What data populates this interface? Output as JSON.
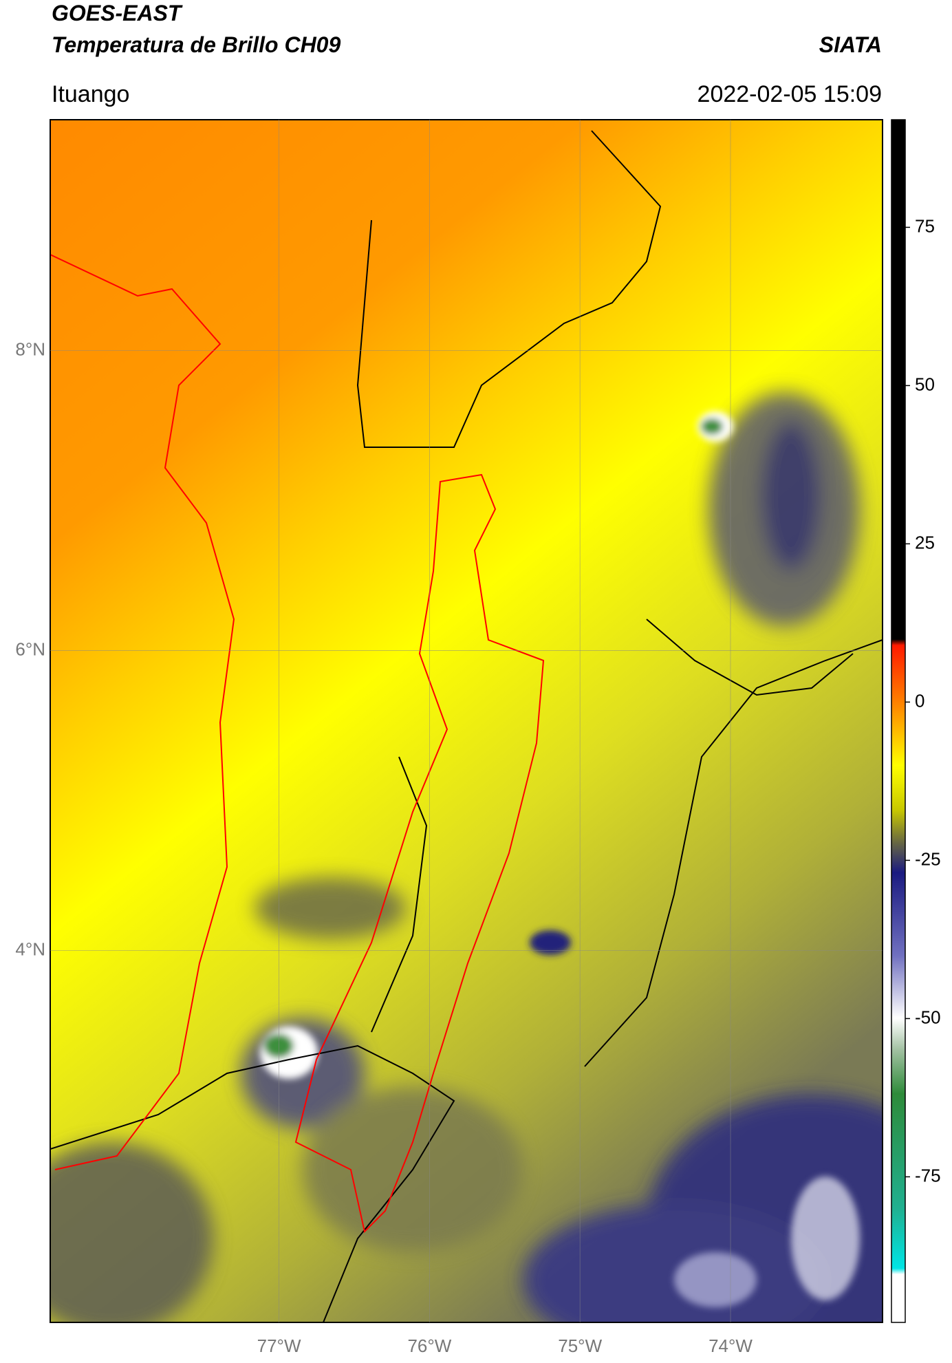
{
  "header": {
    "title": "GOES-EAST",
    "subtitle": "Temperatura de Brillo CH09",
    "source": "SIATA",
    "location": "Ituango",
    "datetime": "2022-02-05 15:09"
  },
  "map": {
    "xlim": [
      -78.52,
      -72.99
    ],
    "ylim": [
      1.52,
      9.54
    ],
    "xticks": [
      {
        "value": -77,
        "label": "77°W"
      },
      {
        "value": -76,
        "label": "76°W"
      },
      {
        "value": -75,
        "label": "75°W"
      },
      {
        "value": -74,
        "label": "74°W"
      }
    ],
    "yticks": [
      {
        "value": 8,
        "label": "8°N"
      },
      {
        "value": 6,
        "label": "6°N"
      },
      {
        "value": 4,
        "label": "4°N"
      }
    ],
    "grid": true
  },
  "colorbar": {
    "lim": [
      -98,
      92
    ],
    "ticks": [
      75,
      50,
      25,
      0,
      -25,
      -50,
      -75
    ]
  }
}
